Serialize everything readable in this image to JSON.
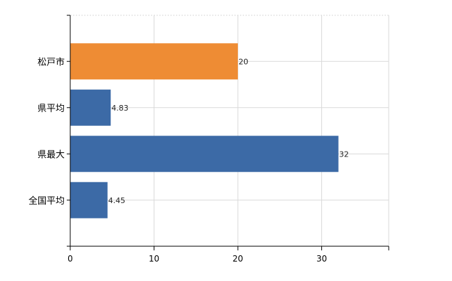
{
  "chart_data": {
    "type": "bar",
    "orientation": "horizontal",
    "categories": [
      "松戸市",
      "県平均",
      "県最大",
      "全国平均"
    ],
    "values": [
      20,
      4.83,
      32,
      4.45
    ],
    "value_labels": [
      "20",
      "4.83",
      "32",
      "4.45"
    ],
    "bar_colors": [
      "#ee8c34",
      "#3c6aa6",
      "#3c6aa6",
      "#3c6aa6"
    ],
    "xlim": [
      0,
      38
    ],
    "x_ticks": [
      0,
      10,
      20,
      30
    ],
    "x_tick_labels": [
      "0",
      "10",
      "20",
      "30"
    ],
    "grid": true,
    "legend": "none"
  }
}
